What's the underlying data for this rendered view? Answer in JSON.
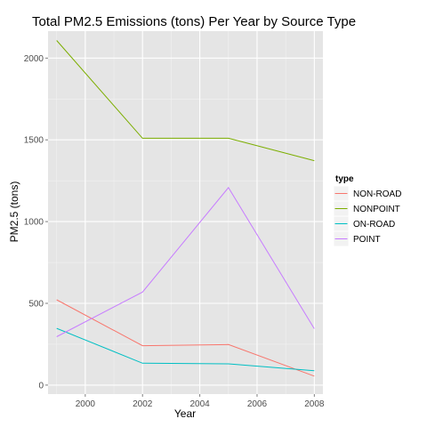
{
  "chart_data": {
    "type": "line",
    "title": "Total PM2.5 Emissions (tons) Per Year by Source Type",
    "xlabel": "Year",
    "ylabel": "PM2.5 (tons)",
    "x": [
      1999,
      2002,
      2005,
      2008
    ],
    "xlim": [
      1998.7,
      2008.3
    ],
    "ylim": [
      -55,
      2165
    ],
    "x_ticks": [
      2000,
      2002,
      2004,
      2006,
      2008
    ],
    "y_ticks": [
      0,
      500,
      1000,
      1500,
      2000
    ],
    "grid": true,
    "panel_background": "#e5e5e5",
    "grid_color": "#ffffff",
    "legend_title": "type",
    "legend_position": "right",
    "series": [
      {
        "name": "NON-ROAD",
        "color": "#f8766d",
        "values": [
          522,
          241,
          248,
          55
        ]
      },
      {
        "name": "NONPOINT",
        "color": "#7cae00",
        "values": [
          2108,
          1510,
          1510,
          1373
        ]
      },
      {
        "name": "ON-ROAD",
        "color": "#00bfc4",
        "values": [
          347,
          134,
          130,
          88
        ]
      },
      {
        "name": "POINT",
        "color": "#c77cff",
        "values": [
          296,
          569,
          1208,
          345
        ]
      }
    ]
  }
}
